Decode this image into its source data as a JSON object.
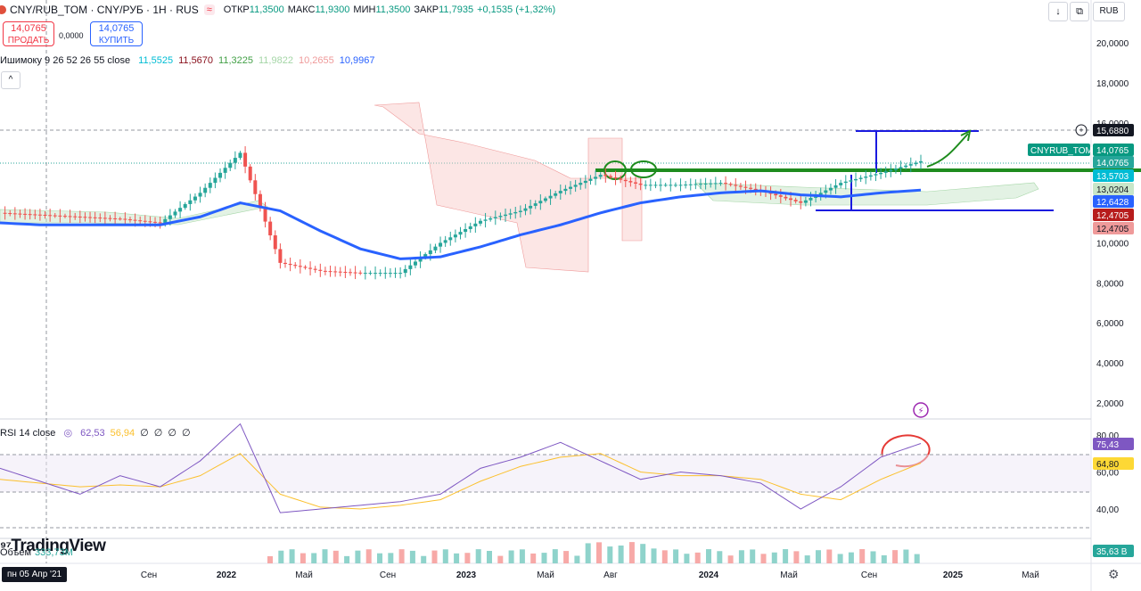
{
  "header": {
    "symbol": "CNY/RUB_TOM · CNY/РУБ · 1H · RUS",
    "symbol_icon": "≈",
    "ohlc": [
      {
        "label": "ОТКР",
        "value": "11,3500"
      },
      {
        "label": "МАКС",
        "value": "11,9300"
      },
      {
        "label": "МИН",
        "value": "11,3500"
      },
      {
        "label": "ЗАКР",
        "value": "11,7935"
      },
      {
        "label": "",
        "value": "+0,1535 (+1,32%)"
      }
    ],
    "currency": "RUB",
    "collapse_icon": "^"
  },
  "trade": {
    "sell_price": "14,0765",
    "sell_label": "ПРОДАТЬ",
    "spread": "0,0000",
    "buy_price": "14,0765",
    "buy_label": "КУПИТЬ"
  },
  "ichimoku": {
    "label": "Ишимоку 9 26 52 26 55 close",
    "values": [
      {
        "value": "11,5525",
        "color": "#00bcd4"
      },
      {
        "value": "11,5670",
        "color": "#880e1a"
      },
      {
        "value": "11,3225",
        "color": "#43a047"
      },
      {
        "value": "11,9822",
        "color": "#a5d6a7"
      },
      {
        "value": "10,2655",
        "color": "#ef9a9a"
      },
      {
        "value": "10,9967",
        "color": "#2962ff"
      }
    ]
  },
  "rsi_legend": {
    "label": "RSI 14 close",
    "values": [
      {
        "value": "62,53",
        "color": "#7e57c2"
      },
      {
        "value": "56,94",
        "color": "#fbc02d"
      },
      {
        "value": "∅",
        "color": "#131722"
      },
      {
        "value": "∅",
        "color": "#131722"
      },
      {
        "value": "∅",
        "color": "#131722"
      },
      {
        "value": "∅",
        "color": "#131722"
      }
    ]
  },
  "volume": {
    "label": "Объем",
    "value": "333,73M",
    "tag": "35,63 В"
  },
  "brand": "TradingView",
  "crosshair_date": "пн 05 Апр '21",
  "price_axis": {
    "ticks": [
      "20,0000",
      "18,0000",
      "16,0000",
      "14,0000",
      "12,0000",
      "10,0000",
      "8,0000",
      "6,0000",
      "4,0000",
      "2,0000"
    ],
    "tags": [
      {
        "text": "15,6880",
        "bg": "#131722",
        "fg": "#ffffff"
      },
      {
        "text": "14,0765",
        "bg": "#089981",
        "fg": "#ffffff"
      },
      {
        "text": "14,0765",
        "bg": "#26a69a",
        "fg": "#ffffff"
      },
      {
        "text": "13,5703",
        "bg": "#00bcd4",
        "fg": "#ffffff"
      },
      {
        "text": "13,0204",
        "bg": "#c8e6c9",
        "fg": "#131722"
      },
      {
        "text": "12,6428",
        "bg": "#2962ff",
        "fg": "#ffffff"
      },
      {
        "text": "12,4705",
        "bg": "#b71c1c",
        "fg": "#ffffff"
      },
      {
        "text": "12,4705",
        "bg": "#ef9a9a",
        "fg": "#131722"
      }
    ],
    "symbol_tag": "CNYRUB_TOM"
  },
  "rsi_axis": {
    "ticks": [
      "80,00",
      "60,00",
      "40,00"
    ],
    "tags": [
      {
        "text": "75,43",
        "bg": "#7e57c2",
        "fg": "#ffffff"
      },
      {
        "text": "64,80",
        "bg": "#fdd835",
        "fg": "#131722"
      }
    ]
  },
  "time_axis": [
    "Сен",
    "2022",
    "Май",
    "Сен",
    "2023",
    "Май",
    "Авг",
    "2024",
    "Май",
    "Сен",
    "2025",
    "Май"
  ],
  "colors": {
    "up": "#26a69a",
    "down": "#ef5350",
    "ma": "#2962ff",
    "kijun": "#880e1a",
    "tenkan": "#00bcd4",
    "chikou": "#43a047"
  },
  "chart_data": {
    "type": "line",
    "title": "CNY/RUB_TOM · CNY/РУБ · 1H · RUS",
    "x": [
      "2021-04",
      "2021-06",
      "2021-08",
      "2021-10",
      "2021-12",
      "2022-02",
      "2022-03",
      "2022-05",
      "2022-07",
      "2022-09",
      "2022-11",
      "2023-01",
      "2023-03",
      "2023-05",
      "2023-07",
      "2023-09",
      "2023-11",
      "2024-01",
      "2024-03",
      "2024-05",
      "2024-07",
      "2024-09",
      "2024-10",
      "2024-11"
    ],
    "ylim": [
      2,
      21
    ],
    "series": [
      {
        "name": "CNY/RUB_TOM",
        "values": [
          11.5,
          11.4,
          11.3,
          11.2,
          11.0,
          12.5,
          14.5,
          9.0,
          8.6,
          8.5,
          8.5,
          10.0,
          11.1,
          11.6,
          12.6,
          13.4,
          12.9,
          12.9,
          13.0,
          12.6,
          12.0,
          13.0,
          13.5,
          14.08
        ]
      },
      {
        "name": "Ишимоку 9 26 52 26 55 close",
        "values": [
          11.0,
          10.9,
          10.9,
          10.9,
          10.9,
          11.3,
          12.0,
          11.6,
          10.6,
          9.7,
          9.2,
          9.3,
          9.8,
          10.4,
          10.9,
          11.5,
          12.0,
          12.3,
          12.5,
          12.6,
          12.4,
          12.3,
          12.5,
          12.64
        ]
      }
    ],
    "rsi": {
      "name": "RSI 14 close",
      "ylim": [
        30,
        90
      ],
      "values": [
        62,
        55,
        48,
        58,
        52,
        66,
        86,
        38,
        40,
        42,
        44,
        48,
        62,
        68,
        76,
        66,
        56,
        60,
        58,
        54,
        40,
        52,
        68,
        75.43
      ]
    },
    "rsi_ma": {
      "values": [
        56,
        54,
        52,
        53,
        52,
        58,
        70,
        48,
        41,
        40,
        42,
        45,
        55,
        63,
        68,
        70,
        60,
        58,
        58,
        56,
        48,
        45,
        56,
        64.8
      ]
    }
  }
}
